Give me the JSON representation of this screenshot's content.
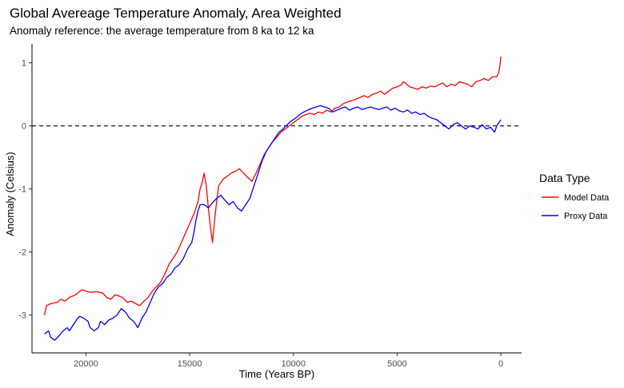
{
  "chart_data": {
    "type": "line",
    "title": "Global Avereage Temperature Anomaly, Area Weighted",
    "subtitle": "Anomaly reference: the average temperature from 8 ka to 12 ka",
    "xlabel": "Time (Years BP)",
    "ylabel": "Anomaly (Celsius)",
    "xlim": [
      22600,
      -1000
    ],
    "ylim": [
      -3.6,
      1.3
    ],
    "x_reversed": true,
    "x_ticks": [
      20000,
      15000,
      10000,
      5000,
      0
    ],
    "x_tick_labels": [
      "20000",
      "15000",
      "10000",
      "5000",
      "0"
    ],
    "y_ticks": [
      1,
      0,
      -1,
      -2,
      -3
    ],
    "y_tick_labels": [
      "1",
      "0",
      "-1",
      "-2",
      "-3"
    ],
    "grid": false,
    "reference_line": {
      "y": 0,
      "style": "dashed",
      "color": "#000000"
    },
    "legend": {
      "title": "Data Type",
      "position": "right"
    },
    "series": [
      {
        "name": "Model Data",
        "color": "#ff0000",
        "points": [
          [
            22000,
            -3.0
          ],
          [
            21900,
            -2.85
          ],
          [
            21700,
            -2.82
          ],
          [
            21400,
            -2.8
          ],
          [
            21200,
            -2.75
          ],
          [
            21000,
            -2.78
          ],
          [
            20800,
            -2.72
          ],
          [
            20500,
            -2.68
          ],
          [
            20200,
            -2.6
          ],
          [
            20000,
            -2.62
          ],
          [
            19800,
            -2.64
          ],
          [
            19500,
            -2.63
          ],
          [
            19200,
            -2.65
          ],
          [
            19000,
            -2.72
          ],
          [
            18800,
            -2.75
          ],
          [
            18600,
            -2.68
          ],
          [
            18400,
            -2.7
          ],
          [
            18200,
            -2.73
          ],
          [
            18000,
            -2.8
          ],
          [
            17800,
            -2.78
          ],
          [
            17600,
            -2.82
          ],
          [
            17400,
            -2.85
          ],
          [
            17200,
            -2.78
          ],
          [
            17000,
            -2.72
          ],
          [
            16800,
            -2.62
          ],
          [
            16600,
            -2.55
          ],
          [
            16400,
            -2.48
          ],
          [
            16200,
            -2.35
          ],
          [
            16000,
            -2.2
          ],
          [
            15800,
            -2.1
          ],
          [
            15600,
            -2.0
          ],
          [
            15400,
            -1.85
          ],
          [
            15200,
            -1.7
          ],
          [
            15000,
            -1.55
          ],
          [
            14800,
            -1.4
          ],
          [
            14600,
            -1.2
          ],
          [
            14500,
            -1.0
          ],
          [
            14400,
            -0.9
          ],
          [
            14300,
            -0.75
          ],
          [
            14200,
            -0.95
          ],
          [
            14100,
            -1.3
          ],
          [
            14000,
            -1.6
          ],
          [
            13900,
            -1.85
          ],
          [
            13800,
            -1.5
          ],
          [
            13700,
            -1.2
          ],
          [
            13600,
            -0.95
          ],
          [
            13400,
            -0.85
          ],
          [
            13200,
            -0.8
          ],
          [
            13000,
            -0.75
          ],
          [
            12800,
            -0.72
          ],
          [
            12600,
            -0.68
          ],
          [
            12400,
            -0.75
          ],
          [
            12200,
            -0.82
          ],
          [
            12000,
            -0.88
          ],
          [
            11800,
            -0.75
          ],
          [
            11600,
            -0.6
          ],
          [
            11400,
            -0.45
          ],
          [
            11200,
            -0.35
          ],
          [
            11000,
            -0.25
          ],
          [
            10800,
            -0.18
          ],
          [
            10600,
            -0.1
          ],
          [
            10400,
            -0.05
          ],
          [
            10200,
            0.0
          ],
          [
            10000,
            0.05
          ],
          [
            9800,
            0.1
          ],
          [
            9600,
            0.15
          ],
          [
            9400,
            0.18
          ],
          [
            9200,
            0.2
          ],
          [
            9000,
            0.18
          ],
          [
            8800,
            0.22
          ],
          [
            8600,
            0.2
          ],
          [
            8400,
            0.25
          ],
          [
            8200,
            0.22
          ],
          [
            8000,
            0.28
          ],
          [
            7800,
            0.3
          ],
          [
            7600,
            0.35
          ],
          [
            7400,
            0.38
          ],
          [
            7200,
            0.4
          ],
          [
            7000,
            0.42
          ],
          [
            6800,
            0.45
          ],
          [
            6600,
            0.48
          ],
          [
            6400,
            0.45
          ],
          [
            6200,
            0.5
          ],
          [
            6000,
            0.52
          ],
          [
            5800,
            0.55
          ],
          [
            5600,
            0.5
          ],
          [
            5400,
            0.55
          ],
          [
            5200,
            0.6
          ],
          [
            5000,
            0.62
          ],
          [
            4800,
            0.65
          ],
          [
            4700,
            0.7
          ],
          [
            4600,
            0.68
          ],
          [
            4400,
            0.62
          ],
          [
            4200,
            0.6
          ],
          [
            4000,
            0.58
          ],
          [
            3800,
            0.62
          ],
          [
            3600,
            0.6
          ],
          [
            3400,
            0.63
          ],
          [
            3200,
            0.62
          ],
          [
            3000,
            0.65
          ],
          [
            2800,
            0.68
          ],
          [
            2600,
            0.62
          ],
          [
            2400,
            0.66
          ],
          [
            2200,
            0.64
          ],
          [
            2000,
            0.7
          ],
          [
            1800,
            0.68
          ],
          [
            1600,
            0.66
          ],
          [
            1400,
            0.62
          ],
          [
            1200,
            0.7
          ],
          [
            1000,
            0.72
          ],
          [
            800,
            0.75
          ],
          [
            600,
            0.72
          ],
          [
            400,
            0.78
          ],
          [
            200,
            0.78
          ],
          [
            100,
            0.85
          ],
          [
            50,
            0.95
          ],
          [
            0,
            1.1
          ]
        ]
      },
      {
        "name": "Proxy Data",
        "color": "#0000ff",
        "points": [
          [
            22000,
            -3.3
          ],
          [
            21800,
            -3.25
          ],
          [
            21700,
            -3.35
          ],
          [
            21500,
            -3.4
          ],
          [
            21300,
            -3.33
          ],
          [
            21100,
            -3.25
          ],
          [
            20900,
            -3.2
          ],
          [
            20800,
            -3.25
          ],
          [
            20600,
            -3.15
          ],
          [
            20400,
            -3.05
          ],
          [
            20300,
            -3.02
          ],
          [
            20100,
            -3.05
          ],
          [
            19900,
            -3.1
          ],
          [
            19800,
            -3.2
          ],
          [
            19600,
            -3.25
          ],
          [
            19400,
            -3.2
          ],
          [
            19300,
            -3.1
          ],
          [
            19100,
            -3.15
          ],
          [
            18900,
            -3.08
          ],
          [
            18700,
            -3.05
          ],
          [
            18500,
            -3.0
          ],
          [
            18300,
            -2.9
          ],
          [
            18100,
            -2.95
          ],
          [
            17900,
            -3.05
          ],
          [
            17700,
            -3.1
          ],
          [
            17500,
            -3.2
          ],
          [
            17300,
            -3.05
          ],
          [
            17100,
            -2.95
          ],
          [
            16900,
            -2.8
          ],
          [
            16700,
            -2.65
          ],
          [
            16500,
            -2.55
          ],
          [
            16300,
            -2.5
          ],
          [
            16100,
            -2.4
          ],
          [
            15900,
            -2.35
          ],
          [
            15700,
            -2.25
          ],
          [
            15500,
            -2.2
          ],
          [
            15300,
            -2.1
          ],
          [
            15100,
            -1.95
          ],
          [
            14900,
            -1.85
          ],
          [
            14800,
            -1.7
          ],
          [
            14700,
            -1.5
          ],
          [
            14600,
            -1.35
          ],
          [
            14500,
            -1.25
          ],
          [
            14300,
            -1.25
          ],
          [
            14100,
            -1.3
          ],
          [
            13900,
            -1.22
          ],
          [
            13700,
            -1.15
          ],
          [
            13500,
            -1.1
          ],
          [
            13300,
            -1.18
          ],
          [
            13100,
            -1.25
          ],
          [
            12900,
            -1.2
          ],
          [
            12700,
            -1.3
          ],
          [
            12500,
            -1.35
          ],
          [
            12300,
            -1.25
          ],
          [
            12100,
            -1.15
          ],
          [
            11900,
            -0.95
          ],
          [
            11700,
            -0.75
          ],
          [
            11500,
            -0.55
          ],
          [
            11300,
            -0.4
          ],
          [
            11100,
            -0.3
          ],
          [
            10900,
            -0.2
          ],
          [
            10700,
            -0.1
          ],
          [
            10500,
            -0.05
          ],
          [
            10300,
            0.02
          ],
          [
            10100,
            0.08
          ],
          [
            9900,
            0.12
          ],
          [
            9700,
            0.18
          ],
          [
            9500,
            0.22
          ],
          [
            9300,
            0.25
          ],
          [
            9100,
            0.28
          ],
          [
            8900,
            0.3
          ],
          [
            8700,
            0.32
          ],
          [
            8500,
            0.3
          ],
          [
            8300,
            0.28
          ],
          [
            8100,
            0.22
          ],
          [
            7900,
            0.25
          ],
          [
            7700,
            0.28
          ],
          [
            7500,
            0.3
          ],
          [
            7300,
            0.25
          ],
          [
            7100,
            0.28
          ],
          [
            6900,
            0.3
          ],
          [
            6700,
            0.26
          ],
          [
            6500,
            0.28
          ],
          [
            6300,
            0.3
          ],
          [
            6100,
            0.28
          ],
          [
            5900,
            0.26
          ],
          [
            5700,
            0.28
          ],
          [
            5500,
            0.3
          ],
          [
            5300,
            0.25
          ],
          [
            5100,
            0.28
          ],
          [
            4900,
            0.24
          ],
          [
            4700,
            0.22
          ],
          [
            4500,
            0.25
          ],
          [
            4300,
            0.2
          ],
          [
            4100,
            0.22
          ],
          [
            3900,
            0.18
          ],
          [
            3700,
            0.2
          ],
          [
            3500,
            0.15
          ],
          [
            3300,
            0.12
          ],
          [
            3100,
            0.1
          ],
          [
            2900,
            0.05
          ],
          [
            2700,
            0.0
          ],
          [
            2500,
            -0.05
          ],
          [
            2300,
            0.02
          ],
          [
            2100,
            0.05
          ],
          [
            1900,
            0.0
          ],
          [
            1700,
            -0.05
          ],
          [
            1500,
            0.0
          ],
          [
            1300,
            -0.02
          ],
          [
            1100,
            -0.05
          ],
          [
            900,
            0.02
          ],
          [
            700,
            -0.05
          ],
          [
            500,
            -0.02
          ],
          [
            300,
            -0.1
          ],
          [
            200,
            0.0
          ],
          [
            100,
            0.05
          ],
          [
            0,
            0.1
          ]
        ]
      }
    ]
  }
}
